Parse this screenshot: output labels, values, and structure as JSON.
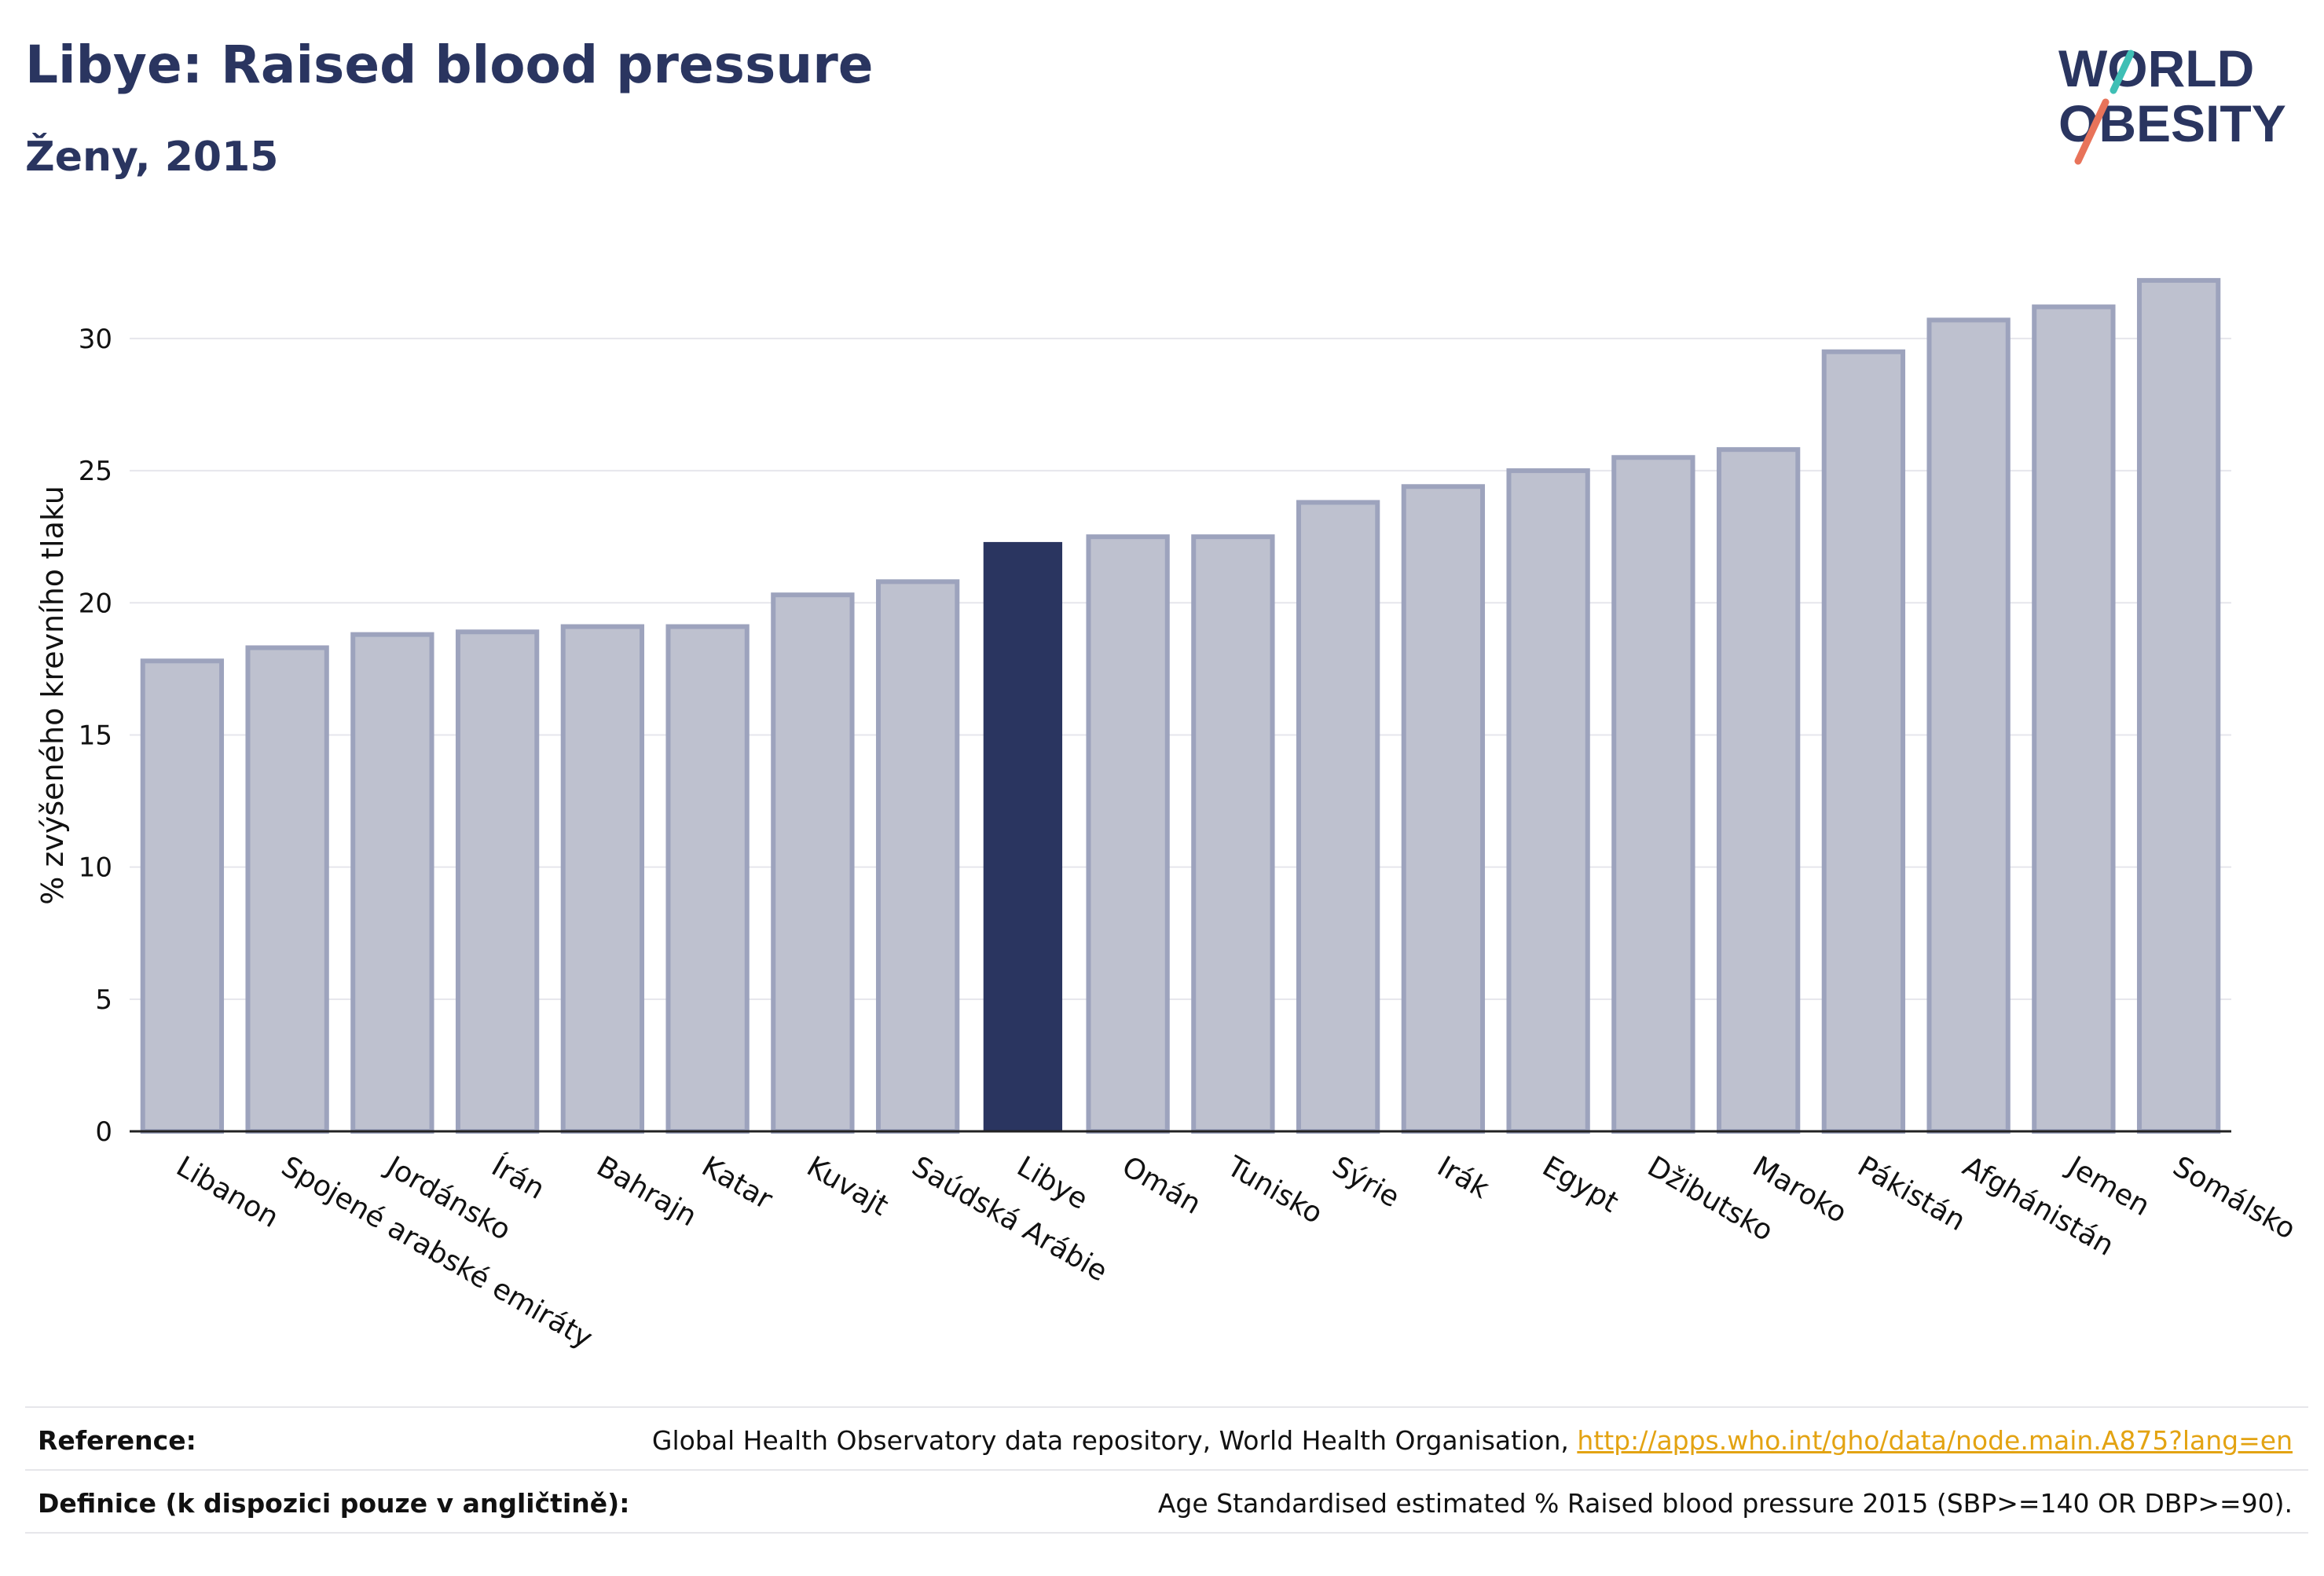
{
  "header": {
    "title": "Libye: Raised blood pressure",
    "subtitle": "Ženy, 2015"
  },
  "logo": {
    "line1": "WORLD",
    "line2": "OBESITY",
    "accent_color": "#e8735a",
    "accent_color_2": "#3fbfb5"
  },
  "chart_data": {
    "type": "bar",
    "title": "Libye: Raised blood pressure",
    "subtitle": "Ženy, 2015",
    "xlabel": "",
    "ylabel": "% zvýšeného krevního tlaku",
    "ylim": [
      0,
      33
    ],
    "yticks": [
      0,
      5,
      10,
      15,
      20,
      25,
      30
    ],
    "grid": true,
    "highlight_category": "Libye",
    "colors": {
      "bar": "#bec1cf",
      "bar_border": "#9da3bd",
      "highlight": "#2a3560"
    },
    "categories": [
      "Libanon",
      "Spojené arabské emiráty",
      "Jordánsko",
      "Írán",
      "Bahrajn",
      "Katar",
      "Kuvajt",
      "Saúdská Arábie",
      "Libye",
      "Omán",
      "Tunisko",
      "Sýrie",
      "Irák",
      "Egypt",
      "Džibutsko",
      "Maroko",
      "Pákistán",
      "Afghánistán",
      "Jemen",
      "Somálsko"
    ],
    "values": [
      17.8,
      18.3,
      18.8,
      18.9,
      19.1,
      19.1,
      20.3,
      20.8,
      22.3,
      22.5,
      22.5,
      23.8,
      24.4,
      25.0,
      25.5,
      25.8,
      29.5,
      30.7,
      31.2,
      32.2
    ]
  },
  "footer": {
    "reference_label": "Reference:",
    "reference_text": "Global Health Observatory data repository, World Health Organisation, ",
    "reference_link": "http://apps.who.int/gho/data/node.main.A875?lang=en",
    "definition_label": "Definice (k dispozici pouze v angličtině):",
    "definition_text": "Age Standardised estimated % Raised blood pressure 2015 (SBP>=140 OR DBP>=90)."
  }
}
